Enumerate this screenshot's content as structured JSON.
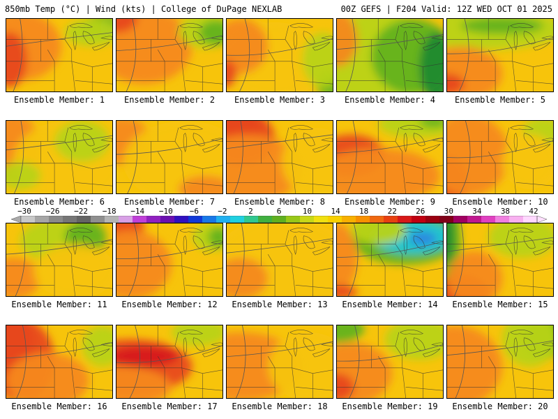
{
  "header": {
    "left_title": "850mb Temp (°C) | Wind (kts) | College of DuPage NEXLAB",
    "right_title": "00Z GEFS | F204 Valid: 12Z WED OCT 01 2025"
  },
  "colors": {
    "base": "#f7c40b",
    "warm": "#f5891f",
    "hot": "#e8491d",
    "red": "#d7191c",
    "cool": "#b9d319",
    "green": "#63b31e",
    "darkgreen": "#1e8a2f",
    "teal": "#21c6d6",
    "blue": "#2a86e0"
  },
  "panels": [
    {
      "label": "Ensemble Member: 1"
    },
    {
      "label": "Ensemble Member: 2"
    },
    {
      "label": "Ensemble Member: 3"
    },
    {
      "label": "Ensemble Member: 4"
    },
    {
      "label": "Ensemble Member: 5"
    },
    {
      "label": "Ensemble Member: 6"
    },
    {
      "label": "Ensemble Member: 7"
    },
    {
      "label": "Ensemble Member: 8"
    },
    {
      "label": "Ensemble Member: 9"
    },
    {
      "label": "Ensemble Member: 10"
    },
    {
      "label": "Ensemble Member: 11"
    },
    {
      "label": "Ensemble Member: 12"
    },
    {
      "label": "Ensemble Member: 13"
    },
    {
      "label": "Ensemble Member: 14"
    },
    {
      "label": "Ensemble Member: 15"
    },
    {
      "label": "Ensemble Member: 16"
    },
    {
      "label": "Ensemble Member: 17"
    },
    {
      "label": "Ensemble Member: 18"
    },
    {
      "label": "Ensemble Member: 19"
    },
    {
      "label": "Ensemble Member: 20"
    }
  ],
  "colorbar": {
    "labels": [
      "−30",
      "−26",
      "−22",
      "−18",
      "−14",
      "−10",
      "−6",
      "−2",
      "2",
      "6",
      "10",
      "14",
      "18",
      "22",
      "26",
      "30",
      "34",
      "38",
      "42"
    ],
    "colors": [
      "#c8c8c8",
      "#a6a6a6",
      "#8a8a8a",
      "#767676",
      "#646464",
      "#8f8f8f",
      "#b4b4b4",
      "#d8a0e6",
      "#c040d8",
      "#9020c0",
      "#6a10b0",
      "#3010c0",
      "#1038d8",
      "#1878e8",
      "#20b0f0",
      "#20d0e0",
      "#30c890",
      "#40b040",
      "#60b020",
      "#98c818",
      "#c8d818",
      "#f0e010",
      "#f8d000",
      "#f8b000",
      "#f89000",
      "#f06810",
      "#e84010",
      "#d81818",
      "#c00010",
      "#9a0010",
      "#800018",
      "#a00060",
      "#c01890",
      "#e040c0",
      "#f080e0",
      "#f8b0f0",
      "#ffd8ff"
    ]
  }
}
